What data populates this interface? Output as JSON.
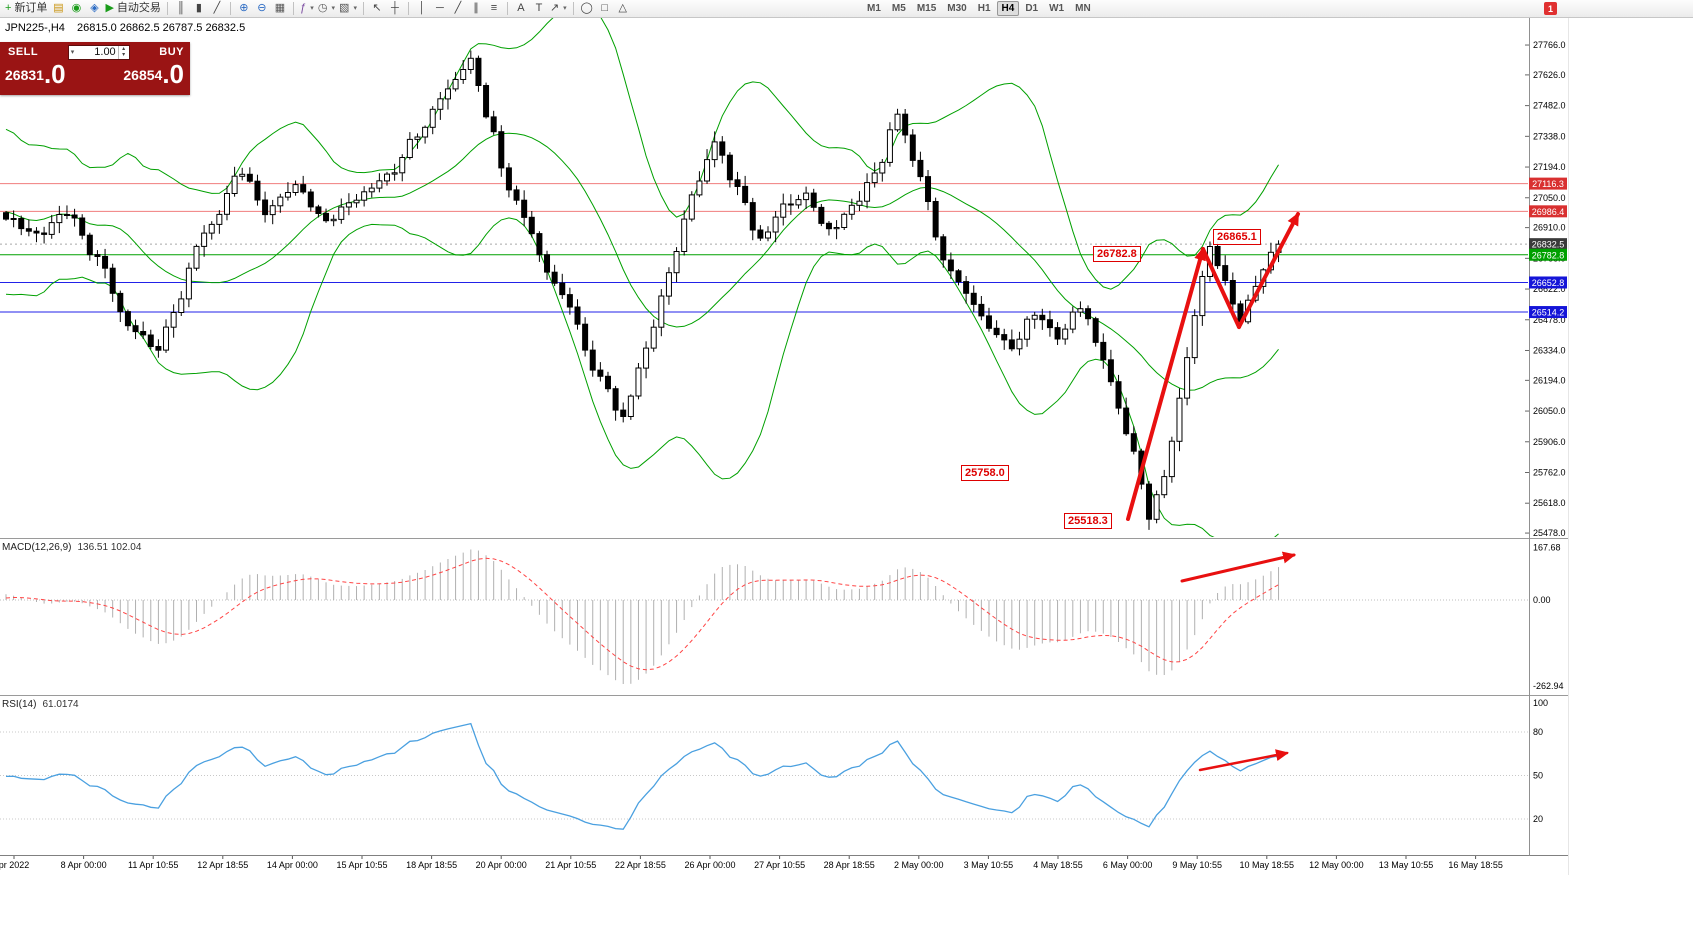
{
  "toolbar": {
    "new_order_label": "新订单",
    "auto_trading_label": "自动交易",
    "timeframes": [
      "M1",
      "M5",
      "M15",
      "M30",
      "H1",
      "H4",
      "D1",
      "W1",
      "MN"
    ],
    "active_timeframe": "H4",
    "notification": "1",
    "icons": {
      "new_order": "+",
      "market_watch": "▤",
      "navigator": "◉",
      "terminal": "◈",
      "auto_trading": "▶",
      "bar_chart": "║",
      "candlestick": "▮",
      "line_chart": "╱",
      "zoom_in": "⊕",
      "zoom_out": "⊖",
      "tile_windows": "▦",
      "indicators": "ƒ",
      "periods": "◷",
      "templates": "▧",
      "cursor": "↖",
      "crosshair": "┼",
      "vline": "│",
      "hline": "─",
      "trendline": "╱",
      "channel": "∥",
      "fibonacci": "≡",
      "text": "A",
      "label": "T",
      "arrow": "↗",
      "ellipse": "◯",
      "rectangle": "□",
      "triangle": "△",
      "caret": "▾"
    }
  },
  "chart_header": {
    "symbol_period": "JPN225-,H4",
    "ohlc": "26815.0 26862.5 26787.5 26832.5"
  },
  "one_click": {
    "sell_label": "SELL",
    "buy_label": "BUY",
    "volume": "1.00",
    "sell_price": "26831",
    "sell_price_big": ".0",
    "buy_price": "26854",
    "buy_price_big": ".0"
  },
  "chart_data": {
    "type": "candlestick",
    "symbol": "JPN225-",
    "timeframe": "H4",
    "main": {
      "bar_count": 168,
      "first_open": 26980,
      "last_close": 26832.5,
      "close_keypoints": [
        [
          0,
          26950
        ],
        [
          4,
          26870
        ],
        [
          8,
          26990
        ],
        [
          12,
          26760
        ],
        [
          16,
          26450
        ],
        [
          20,
          26350
        ],
        [
          22,
          26520
        ],
        [
          26,
          26880
        ],
        [
          31,
          27180
        ],
        [
          34,
          26980
        ],
        [
          38,
          27100
        ],
        [
          42,
          26950
        ],
        [
          46,
          27040
        ],
        [
          50,
          27150
        ],
        [
          54,
          27350
        ],
        [
          58,
          27550
        ],
        [
          61,
          27700
        ],
        [
          63,
          27450
        ],
        [
          66,
          27100
        ],
        [
          68,
          26950
        ],
        [
          71,
          26700
        ],
        [
          74,
          26550
        ],
        [
          77,
          26250
        ],
        [
          81,
          26020
        ],
        [
          84,
          26350
        ],
        [
          87,
          26700
        ],
        [
          90,
          27050
        ],
        [
          93,
          27300
        ],
        [
          96,
          27100
        ],
        [
          99,
          26850
        ],
        [
          102,
          27000
        ],
        [
          105,
          27060
        ],
        [
          108,
          26900
        ],
        [
          111,
          27000
        ],
        [
          114,
          27150
        ],
        [
          117,
          27440
        ],
        [
          120,
          27150
        ],
        [
          123,
          26750
        ],
        [
          126,
          26600
        ],
        [
          129,
          26450
        ],
        [
          132,
          26350
        ],
        [
          135,
          26500
        ],
        [
          138,
          26400
        ],
        [
          141,
          26550
        ],
        [
          144,
          26300
        ],
        [
          146,
          26050
        ],
        [
          148,
          25850
        ],
        [
          150,
          25560
        ],
        [
          152,
          25750
        ],
        [
          154,
          26100
        ],
        [
          156,
          26500
        ],
        [
          158,
          26820
        ],
        [
          160,
          26650
        ],
        [
          162,
          26480
        ],
        [
          164,
          26650
        ],
        [
          166,
          26780
        ],
        [
          167,
          26832.5
        ]
      ],
      "bollinger": {
        "period": 20,
        "deviation": 2,
        "color": "#00a000"
      },
      "y_ticks": [
        "27766.0",
        "27626.0",
        "27482.0",
        "27338.0",
        "27194.0",
        "27050.0",
        "26910.0",
        "26766.0",
        "26622.0",
        "26478.0",
        "26334.0",
        "26194.0",
        "26050.0",
        "25906.0",
        "25762.0",
        "25618.0",
        "25478.0"
      ],
      "hlines": [
        {
          "price": 27116.3,
          "label": "27116.3",
          "color": "#f07d7d",
          "label_bg": "#d93030",
          "dash": "none"
        },
        {
          "price": 26986.4,
          "label": "26986.4",
          "color": "#f07d7d",
          "label_bg": "#d93030",
          "dash": "none"
        },
        {
          "price": 26832.5,
          "label": "26832.5",
          "color": "#a8a8a8",
          "label_bg": "#3a3a3a",
          "dash": "2,3"
        },
        {
          "price": 26782.8,
          "label": "26782.8",
          "color": "#00a000",
          "label_bg": "#00a000",
          "dash": "none"
        },
        {
          "price": 26652.8,
          "label": "26652.8",
          "color": "#2222e8",
          "label_bg": "#1515d8",
          "dash": "none"
        },
        {
          "price": 26514.2,
          "label": "26514.2",
          "color": "#2222e8",
          "label_bg": "#1515d8",
          "dash": "none"
        }
      ],
      "annotations": [
        {
          "text": "26782.8"
        },
        {
          "text": "26865.1"
        },
        {
          "text": "25758.0"
        },
        {
          "text": "25518.3"
        }
      ]
    },
    "arrows": [
      {
        "panel": "main",
        "points": [
          [
            1128,
            519
          ],
          [
            1203,
            249
          ]
        ],
        "head": true,
        "width": 4
      },
      {
        "panel": "main",
        "points": [
          [
            1203,
            249
          ],
          [
            1239,
            327
          ]
        ],
        "head": false,
        "width": 4
      },
      {
        "panel": "main",
        "points": [
          [
            1239,
            327
          ],
          [
            1298,
            214
          ]
        ],
        "head": true,
        "width": 4
      },
      {
        "panel": "macd",
        "points": [
          [
            1182,
            581
          ],
          [
            1294,
            555
          ]
        ],
        "head": true,
        "width": 3
      },
      {
        "panel": "rsi",
        "points": [
          [
            1200,
            770
          ],
          [
            1287,
            753
          ]
        ],
        "head": true,
        "width": 2.5
      }
    ],
    "macd": {
      "name": "MACD(12,26,9)",
      "values": "136.51 102.04",
      "axis_ticks": [
        "167.68",
        "0.00",
        "-262.94"
      ],
      "histogram_color": "#b0b0b0",
      "signal_color": "#ff4545"
    },
    "rsi": {
      "name": "RSI(14)",
      "value": "61.0174",
      "axis_ticks": [
        "100",
        "80",
        "50",
        "20"
      ],
      "levels": [
        80,
        50,
        20
      ],
      "line_color": "#4aa0e0"
    },
    "time_axis": {
      "labels": [
        "pr 2022",
        "8 Apr 00:00",
        "11 Apr 10:55",
        "12 Apr 18:55",
        "14 Apr 00:00",
        "15 Apr 10:55",
        "18 Apr 18:55",
        "20 Apr 00:00",
        "21 Apr 10:55",
        "22 Apr 18:55",
        "26 Apr 00:00",
        "27 Apr 10:55",
        "28 Apr 18:55",
        "2 May 00:00",
        "3 May 10:55",
        "4 May 18:55",
        "6 May 00:00",
        "9 May 10:55",
        "10 May 18:55",
        "12 May 00:00",
        "13 May 10:55",
        "16 May 18:55"
      ]
    }
  }
}
